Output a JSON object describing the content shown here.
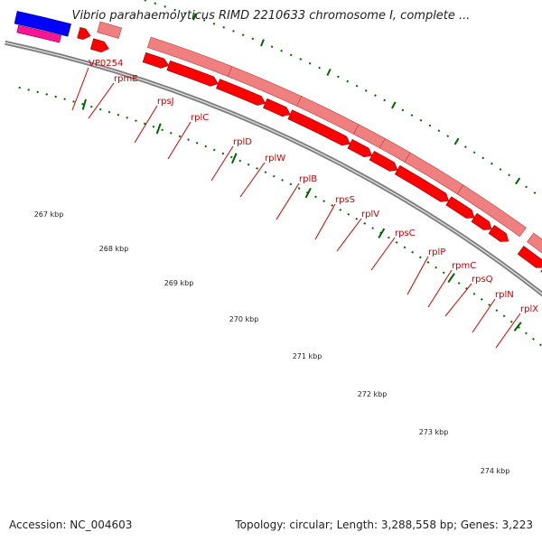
{
  "title": "Vibrio parahaemolyticus RIMD 2210633 chromosome I, complete ...",
  "footer": {
    "accession": "Accession: NC_004603",
    "topology": "Topology: circular; Length: 3,288,558 bp; Genes: 3,223"
  },
  "colors": {
    "backbone": "#808080",
    "forward_gene": "#f08080",
    "forward_gene_edge": "#c04848",
    "reverse_gene": "#ff0000",
    "reverse_gene_edge": "#990000",
    "other_blue": "#0000ff",
    "other_magenta": "#ff1493",
    "tick": "#006400",
    "label": "#cc0000"
  },
  "ruler": [
    "267 kbp",
    "268 kbp",
    "269 kbp",
    "270 kbp",
    "271 kbp",
    "272 kbp",
    "273 kbp",
    "274 kbp"
  ],
  "gene_labels": [
    "VP0254",
    "rpmE",
    "rpsJ",
    "rplC",
    "rplD",
    "rplW",
    "rplB",
    "rpsS",
    "rplV",
    "rpsC",
    "rplP",
    "rpmC",
    "rpsQ",
    "rplN",
    "rplX"
  ]
}
